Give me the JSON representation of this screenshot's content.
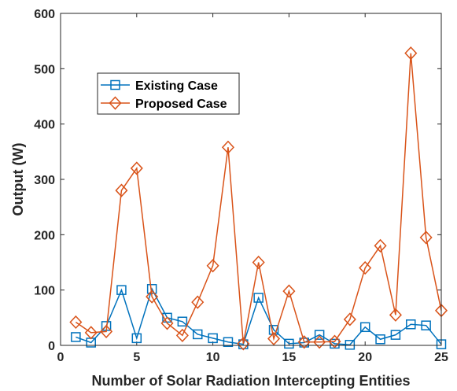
{
  "chart_data": {
    "type": "line",
    "title": "",
    "xlabel": "Number of Solar Radiation Intercepting Entities",
    "ylabel": "Output (W)",
    "xlim": [
      0,
      25
    ],
    "ylim": [
      0,
      600
    ],
    "xticks": [
      "0",
      "5",
      "10",
      "15",
      "20",
      "25"
    ],
    "yticks": [
      "0",
      "100",
      "200",
      "300",
      "400",
      "500",
      "600"
    ],
    "grid": false,
    "legend": "top-left",
    "x": [
      1,
      2,
      3,
      4,
      5,
      6,
      7,
      8,
      9,
      10,
      11,
      12,
      13,
      14,
      15,
      16,
      17,
      18,
      19,
      20,
      21,
      22,
      23,
      24,
      25
    ],
    "series": [
      {
        "name": "Existing Case",
        "marker": "square",
        "color": "#0072bd",
        "values": [
          15,
          5,
          35,
          100,
          13,
          102,
          50,
          43,
          20,
          13,
          6,
          2,
          86,
          28,
          3,
          5,
          19,
          3,
          1,
          33,
          11,
          19,
          38,
          36,
          2
        ]
      },
      {
        "name": "Proposed Case",
        "marker": "diamond",
        "color": "#d95319",
        "values": [
          42,
          23,
          25,
          280,
          320,
          88,
          40,
          18,
          78,
          144,
          358,
          3,
          150,
          12,
          98,
          6,
          6,
          7,
          47,
          140,
          180,
          55,
          528,
          195,
          63
        ]
      }
    ]
  }
}
